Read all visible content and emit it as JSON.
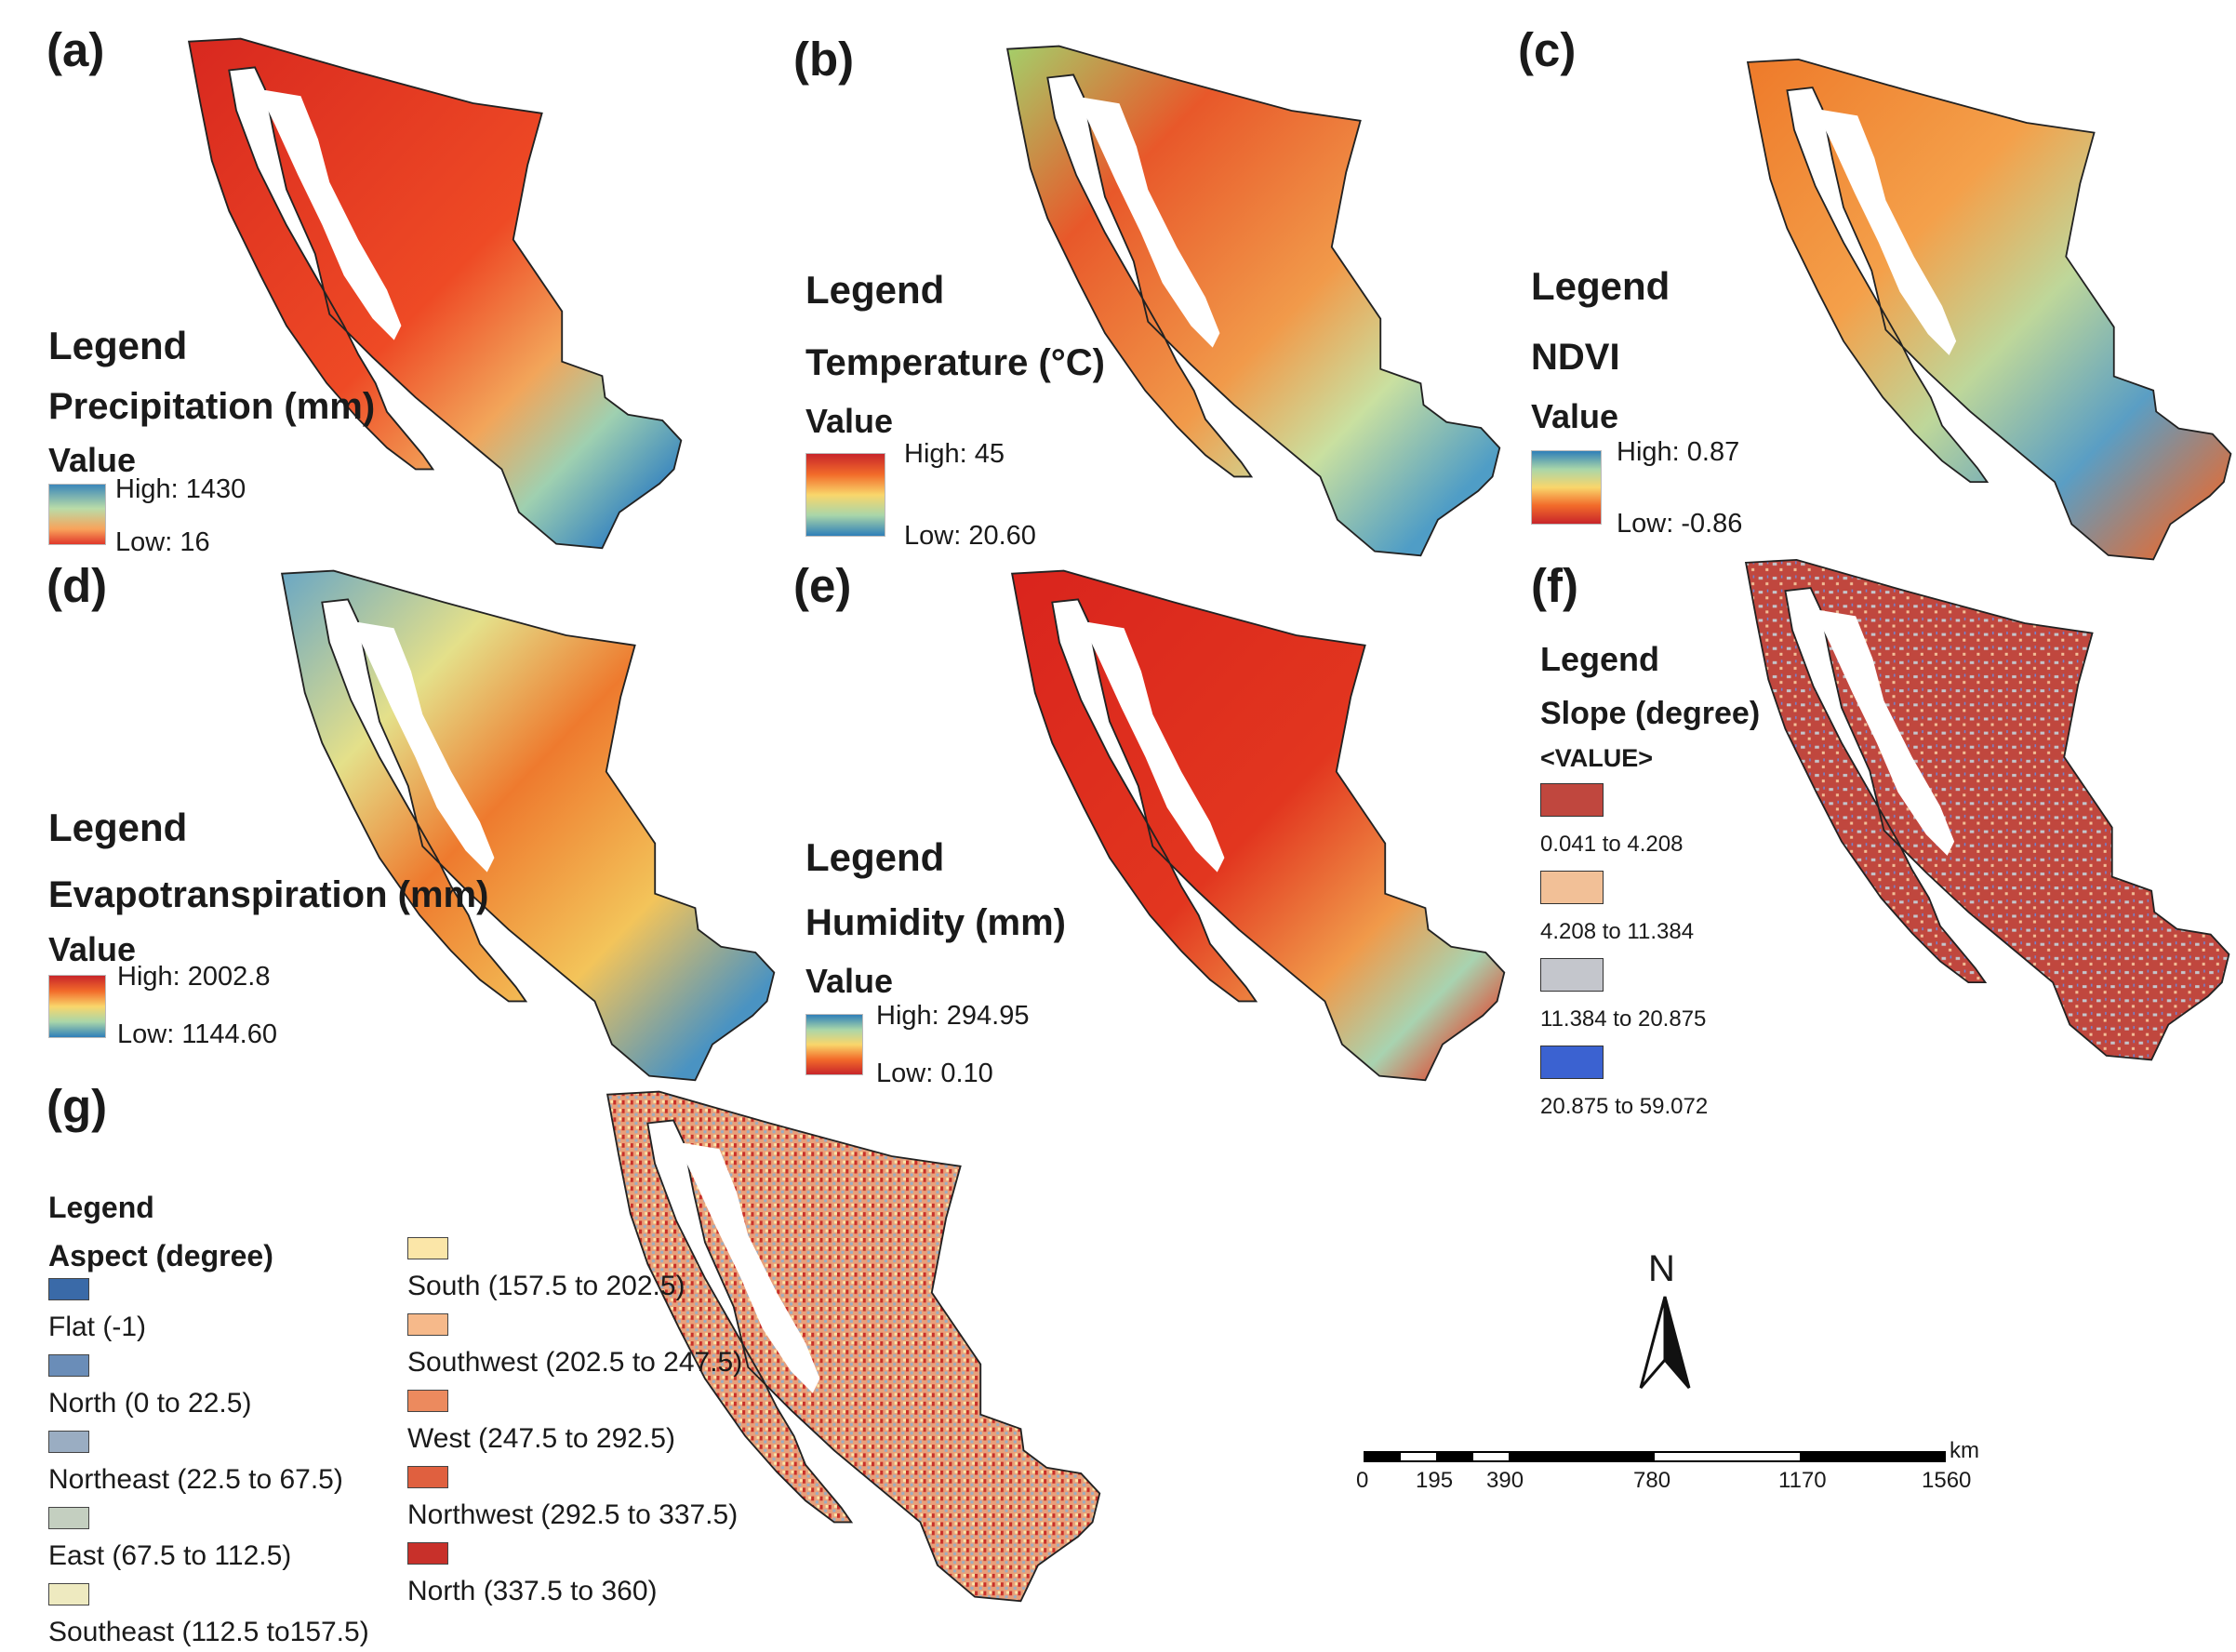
{
  "panels": [
    {
      "label": "(a)",
      "legend_title": "Legend",
      "variable": "Precipitation (mm)",
      "value_heading": "Value",
      "high": "High: 1430",
      "low": "Low: 16"
    },
    {
      "label": "(b)",
      "legend_title": "Legend",
      "variable": "Temperature (°C)",
      "value_heading": "Value",
      "high": "High: 45",
      "low": "Low: 20.60"
    },
    {
      "label": "(c)",
      "legend_title": "Legend",
      "variable": "NDVI",
      "value_heading": "Value",
      "high": "High: 0.87",
      "low": "Low: -0.86"
    },
    {
      "label": "(d)",
      "legend_title": "Legend",
      "variable": "Evapotranspiration (mm)",
      "value_heading": "Value",
      "high": "High: 2002.8",
      "low": "Low: 1144.60"
    },
    {
      "label": "(e)",
      "legend_title": "Legend",
      "variable": "Humidity (mm)",
      "value_heading": "Value",
      "high": "High: 294.95",
      "low": "Low: 0.10"
    },
    {
      "label": "(f)",
      "legend_title": "Legend",
      "variable": "Slope (degree)",
      "value_heading": "<VALUE>",
      "classes": [
        {
          "label": "0.041 to 4.208",
          "color": "#c0473e"
        },
        {
          "label": "4.208 to 11.384",
          "color": "#f2c097"
        },
        {
          "label": "11.384 to 20.875",
          "color": "#c4c6cc"
        },
        {
          "label": "20.875 to 59.072",
          "color": "#3b62d1"
        }
      ]
    },
    {
      "label": "(g)",
      "legend_title": "Legend",
      "variable": "Aspect (degree)",
      "classes": [
        {
          "label": "Flat (-1)",
          "color": "#3a6aa8"
        },
        {
          "label": "North (0 to 22.5)",
          "color": "#6a8db8"
        },
        {
          "label": "Northeast (22.5 to 67.5)",
          "color": "#9aadc2"
        },
        {
          "label": "East (67.5 to 112.5)",
          "color": "#c4cfc0"
        },
        {
          "label": "Southeast (112.5 to157.5)",
          "color": "#eeeac0"
        },
        {
          "label": "South (157.5 to 202.5)",
          "color": "#fbe6a8"
        },
        {
          "label": "Southwest (202.5 to 247.5)",
          "color": "#f6b98a"
        },
        {
          "label": "West (247.5 to 292.5)",
          "color": "#ec8a5e"
        },
        {
          "label": "Northwest (292.5 to 337.5)",
          "color": "#e0603f"
        },
        {
          "label": "North (337.5 to 360)",
          "color": "#c8302a"
        }
      ]
    }
  ],
  "north_arrow": "N",
  "scale_bar": {
    "unit": "km",
    "ticks": [
      "0",
      "195",
      "390",
      "780",
      "1170",
      "1560"
    ]
  },
  "colors": {
    "ramp_high": "#c8252a",
    "ramp_mid": "#f9d66b",
    "ramp_low": "#2f7fb8"
  }
}
